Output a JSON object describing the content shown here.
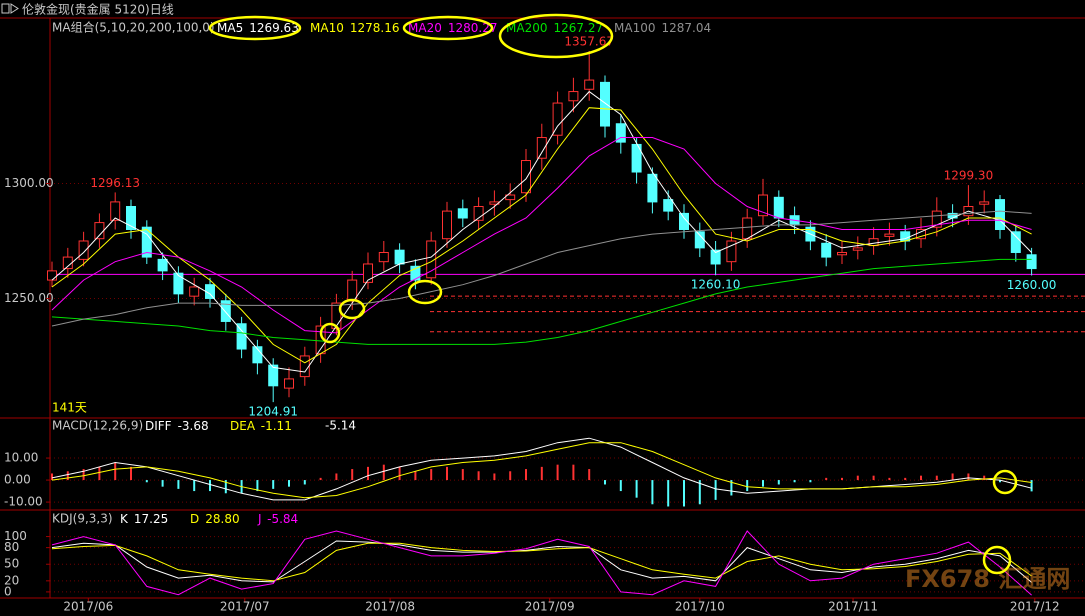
{
  "chart_data": [
    {
      "type": "candlestick",
      "title": "伦敦金现(贵金属 5120)日线",
      "legend_title": "MA组合(5,10,20,200,100,0)",
      "days_label": "141天",
      "up_color": "#ff3232",
      "down_color": "#54ffff",
      "grid": true,
      "ylim": [
        1198,
        1372
      ],
      "yticks": [
        {
          "value": 1250,
          "label": "1250.00"
        },
        {
          "value": 1300,
          "label": "1300.00"
        }
      ],
      "candles": [
        [
          1258,
          1262,
          1266,
          1255
        ],
        [
          1263,
          1268,
          1272,
          1259
        ],
        [
          1267,
          1275,
          1279,
          1264
        ],
        [
          1276,
          1283,
          1287,
          1272
        ],
        [
          1284,
          1292,
          1296.13,
          1280
        ],
        [
          1290,
          1280,
          1293,
          1276
        ],
        [
          1281,
          1268,
          1284,
          1265
        ],
        [
          1267,
          1262,
          1270,
          1258
        ],
        [
          1261,
          1252,
          1264,
          1248
        ],
        [
          1251,
          1255,
          1259,
          1247
        ],
        [
          1256,
          1250,
          1259,
          1246
        ],
        [
          1249,
          1240,
          1252,
          1236
        ],
        [
          1239,
          1228,
          1242,
          1224
        ],
        [
          1229,
          1222,
          1232,
          1217
        ],
        [
          1221,
          1212,
          1224,
          1204.91
        ],
        [
          1211,
          1215,
          1220,
          1207
        ],
        [
          1216,
          1225,
          1229,
          1212
        ],
        [
          1226,
          1238,
          1242,
          1222
        ],
        [
          1237,
          1248,
          1252,
          1234
        ],
        [
          1249,
          1258,
          1262,
          1245
        ],
        [
          1257,
          1265,
          1270,
          1254
        ],
        [
          1266,
          1270,
          1275,
          1262
        ],
        [
          1271,
          1265,
          1274,
          1261
        ],
        [
          1264,
          1258,
          1267,
          1254
        ],
        [
          1259,
          1275,
          1279,
          1256
        ],
        [
          1276,
          1288,
          1292,
          1272
        ],
        [
          1289,
          1285,
          1293,
          1281
        ],
        [
          1284,
          1290,
          1294,
          1280
        ],
        [
          1291,
          1292,
          1297,
          1286
        ],
        [
          1293,
          1295,
          1300,
          1289
        ],
        [
          1296,
          1310,
          1315,
          1292
        ],
        [
          1311,
          1320,
          1326,
          1306
        ],
        [
          1321,
          1335,
          1340,
          1317
        ],
        [
          1336,
          1340,
          1346,
          1331
        ],
        [
          1341,
          1345,
          1357.67,
          1336
        ],
        [
          1344,
          1325,
          1347,
          1320
        ],
        [
          1326,
          1318,
          1330,
          1313
        ],
        [
          1317,
          1305,
          1320,
          1300
        ],
        [
          1304,
          1292,
          1307,
          1287
        ],
        [
          1293,
          1288,
          1297,
          1284
        ],
        [
          1287,
          1280,
          1291,
          1276
        ],
        [
          1279,
          1272,
          1283,
          1268
        ],
        [
          1271,
          1265,
          1275,
          1260.1
        ],
        [
          1266,
          1275,
          1279,
          1262
        ],
        [
          1276,
          1285,
          1289,
          1272
        ],
        [
          1286,
          1295,
          1302,
          1282
        ],
        [
          1294,
          1285,
          1297,
          1281
        ],
        [
          1286,
          1282,
          1290,
          1278
        ],
        [
          1281,
          1275,
          1284,
          1271
        ],
        [
          1274,
          1268,
          1278,
          1264
        ],
        [
          1269,
          1270,
          1275,
          1265
        ],
        [
          1271,
          1272,
          1277,
          1267
        ],
        [
          1273,
          1276,
          1281,
          1269
        ],
        [
          1277,
          1278,
          1283,
          1273
        ],
        [
          1279,
          1275,
          1282,
          1271
        ],
        [
          1276,
          1280,
          1285,
          1272
        ],
        [
          1281,
          1288,
          1294,
          1277
        ],
        [
          1287,
          1285,
          1291,
          1281
        ],
        [
          1286,
          1290,
          1299.3,
          1282
        ],
        [
          1291,
          1292,
          1297,
          1287
        ],
        [
          1293,
          1280,
          1295,
          1276
        ],
        [
          1279,
          1270,
          1282,
          1266
        ],
        [
          1269,
          1263,
          1272,
          1260
        ]
      ],
      "line_x": [
        0,
        2,
        4,
        6,
        8,
        10,
        12,
        14,
        16,
        18,
        20,
        22,
        24,
        26,
        28,
        30,
        32,
        34,
        36,
        38,
        40,
        42,
        44,
        46,
        48,
        50,
        52,
        54,
        56,
        58,
        60,
        62
      ],
      "series": [
        {
          "name": "MA5",
          "last": 1269.63,
          "color": "#ffffff",
          "values": [
            1258,
            1270,
            1285,
            1278,
            1260,
            1252,
            1236,
            1220,
            1218,
            1238,
            1258,
            1265,
            1268,
            1280,
            1290,
            1302,
            1325,
            1340,
            1330,
            1305,
            1285,
            1270,
            1276,
            1284,
            1278,
            1272,
            1274,
            1276,
            1282,
            1288,
            1284,
            1270
          ]
        },
        {
          "name": "MA10",
          "last": 1278.16,
          "color": "#ffff00",
          "values": [
            1255,
            1265,
            1278,
            1280,
            1268,
            1258,
            1245,
            1230,
            1222,
            1230,
            1248,
            1260,
            1266,
            1275,
            1285,
            1295,
            1315,
            1333,
            1332,
            1315,
            1295,
            1278,
            1275,
            1280,
            1280,
            1275,
            1273,
            1275,
            1279,
            1285,
            1285,
            1278
          ]
        },
        {
          "name": "MA20",
          "last": 1280.27,
          "color": "#ff00ff",
          "values": [
            1245,
            1258,
            1266,
            1270,
            1268,
            1262,
            1255,
            1245,
            1236,
            1235,
            1245,
            1255,
            1262,
            1270,
            1278,
            1285,
            1298,
            1312,
            1320,
            1320,
            1315,
            1300,
            1290,
            1285,
            1283,
            1280,
            1280,
            1280,
            1282,
            1284,
            1284,
            1280
          ]
        },
        {
          "name": "MA200",
          "last": 1267.27,
          "color": "#00e000",
          "values": [
            1242,
            1241,
            1240,
            1239,
            1238,
            1236,
            1235,
            1233,
            1232,
            1231,
            1230,
            1230,
            1230,
            1230,
            1230,
            1231,
            1233,
            1236,
            1240,
            1244,
            1248,
            1252,
            1255,
            1257,
            1259,
            1261,
            1263,
            1264,
            1265,
            1266,
            1267,
            1267
          ]
        },
        {
          "name": "MA100",
          "last": 1287.04,
          "color": "#909090",
          "values": [
            1238,
            1241,
            1243,
            1246,
            1248,
            1248,
            1247,
            1247,
            1247,
            1247,
            1248,
            1250,
            1253,
            1256,
            1260,
            1265,
            1270,
            1273,
            1276,
            1278,
            1279,
            1280,
            1281,
            1282,
            1282,
            1283,
            1284,
            1285,
            1286,
            1287,
            1288,
            1287
          ]
        }
      ],
      "solid_levels": [
        1260.5
      ],
      "dashed_levels": [
        1251,
        1244.3,
        1235.5
      ],
      "highs": [
        {
          "index": 4,
          "value": 1296.13
        },
        {
          "index": 34,
          "value": 1357.67
        },
        {
          "index": 58,
          "value": 1299.3,
          "label": "1299.30"
        }
      ],
      "lows": [
        {
          "index": 14,
          "value": 1204.91
        },
        {
          "index": 42,
          "value": 1260.1,
          "label": "1260.10"
        },
        {
          "index": 62,
          "value": 1260,
          "label": "1260.00"
        }
      ]
    },
    {
      "type": "macd",
      "legend_title": "MACD(12,26,9)",
      "up_color": "#ff3232",
      "down_color": "#54ffff",
      "grid": true,
      "ylim": [
        -13.6,
        28.2
      ],
      "yticks": [
        {
          "value": 10,
          "label": "10.00"
        },
        {
          "value": 0,
          "label": "0.00"
        },
        {
          "value": -10,
          "label": "-10.00"
        }
      ],
      "values": [
        3,
        4,
        5,
        6,
        8,
        6,
        -1,
        -3,
        -4,
        -5,
        -5,
        -6,
        -6,
        -5,
        -4,
        -3,
        -2,
        1,
        3,
        5,
        6,
        7,
        6,
        4,
        5,
        6,
        5,
        4,
        3,
        4,
        5,
        6,
        7,
        7,
        5,
        -2,
        -5,
        -8,
        -11,
        -12,
        -12,
        -11,
        -9,
        -7,
        -5,
        -3,
        -2,
        -1,
        -1,
        1,
        1,
        2,
        2,
        1,
        1,
        2,
        2,
        3,
        3,
        2,
        -1,
        -3,
        -5.14
      ],
      "line_x": [
        0,
        2,
        4,
        6,
        8,
        10,
        12,
        14,
        16,
        18,
        20,
        22,
        24,
        26,
        28,
        30,
        32,
        34,
        36,
        38,
        40,
        42,
        44,
        46,
        48,
        50,
        52,
        54,
        56,
        58,
        60,
        62
      ],
      "series": [
        {
          "name": "DIFF",
          "last": -3.68,
          "color": "#ffffff",
          "values": [
            1,
            4,
            8,
            6,
            2,
            -2,
            -6,
            -9,
            -9,
            -4,
            2,
            6,
            9,
            10,
            11,
            13,
            17,
            19,
            15,
            8,
            1,
            -4,
            -6,
            -5,
            -4,
            -4,
            -3,
            -2,
            -1,
            1,
            0,
            -3.68
          ]
        },
        {
          "name": "DEA",
          "last": -1.11,
          "color": "#ffff00",
          "values": [
            0,
            2,
            5,
            6,
            4,
            1,
            -3,
            -6,
            -8,
            -7,
            -3,
            2,
            6,
            8,
            9,
            11,
            14,
            17,
            17,
            13,
            7,
            1,
            -3,
            -4,
            -4,
            -4,
            -3,
            -3,
            -2,
            0,
            1,
            -1.11
          ]
        }
      ]
    },
    {
      "type": "line",
      "legend_title": "KDJ(9,3,3)",
      "grid": true,
      "ylim": [
        -11,
        148
      ],
      "yticks": [
        100,
        80,
        50,
        20,
        0
      ],
      "line_x": [
        0,
        2,
        4,
        6,
        8,
        10,
        12,
        14,
        16,
        18,
        20,
        22,
        24,
        26,
        28,
        30,
        32,
        34,
        36,
        38,
        40,
        42,
        44,
        46,
        48,
        50,
        52,
        54,
        56,
        58,
        60,
        62
      ],
      "series": [
        {
          "name": "K",
          "last": 17.25,
          "color": "#ffffff",
          "values": [
            80,
            88,
            85,
            45,
            25,
            30,
            20,
            18,
            55,
            92,
            90,
            85,
            75,
            72,
            72,
            75,
            82,
            80,
            40,
            25,
            28,
            20,
            80,
            60,
            40,
            35,
            45,
            50,
            60,
            75,
            65,
            17.25
          ]
        },
        {
          "name": "D",
          "last": {
            "value": 28.8,
            "label": "28.80"
          },
          "color": "#ffff00",
          "values": [
            78,
            82,
            84,
            65,
            40,
            32,
            25,
            20,
            35,
            75,
            88,
            88,
            80,
            75,
            73,
            74,
            78,
            80,
            60,
            40,
            32,
            25,
            55,
            65,
            50,
            40,
            42,
            46,
            55,
            68,
            70,
            28.8
          ]
        },
        {
          "name": "J",
          "last": -5.84,
          "color": "#ff00ff",
          "values": [
            85,
            100,
            85,
            10,
            -5,
            25,
            5,
            15,
            95,
            110,
            95,
            80,
            65,
            65,
            70,
            78,
            95,
            82,
            0,
            -5,
            20,
            10,
            110,
            50,
            20,
            25,
            50,
            60,
            70,
            90,
            45,
            -5.84
          ]
        }
      ],
      "xticks": [
        {
          "value": 2.3,
          "label": "2017/06"
        },
        {
          "value": 12.2,
          "label": "2017/07"
        },
        {
          "value": 21.4,
          "label": "2017/08"
        },
        {
          "value": 31.5,
          "label": "2017/09"
        },
        {
          "value": 41,
          "label": "2017/10"
        },
        {
          "value": 50.7,
          "label": "2017/11"
        },
        {
          "value": 62.2,
          "label": "2017/12"
        }
      ],
      "watermark": "FX678 汇通网"
    }
  ]
}
